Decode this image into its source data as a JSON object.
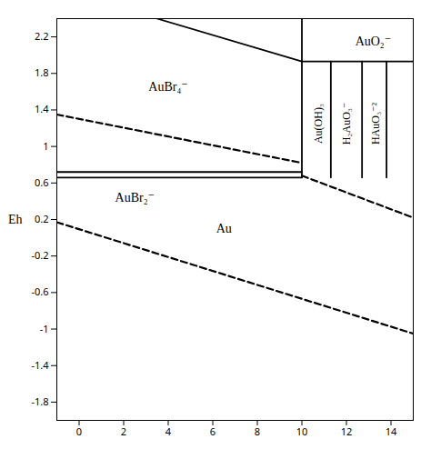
{
  "chart_data": {
    "type": "line",
    "ylabel": "Eh",
    "xlim": [
      -1,
      15
    ],
    "ylim": [
      -2.0,
      2.4
    ],
    "xticks": [
      0,
      2,
      4,
      6,
      8,
      10,
      12,
      14
    ],
    "yticks": [
      -1.8,
      -1.4,
      -1.0,
      -0.6,
      -0.2,
      0.2,
      0.6,
      1.0,
      1.4,
      1.8,
      2.2
    ],
    "grid": false,
    "color": "#000000",
    "series": [
      {
        "x": [
          -1,
          10.0
        ],
        "values": [
          0.72,
          0.72
        ],
        "line_style": "solid"
      },
      {
        "x": [
          -1,
          10.0
        ],
        "values": [
          0.66,
          0.66
        ],
        "line_style": "solid"
      },
      {
        "x": [
          10.0,
          10.0
        ],
        "values": [
          0.66,
          2.4
        ],
        "line_style": "solid"
      },
      {
        "x": [
          10.0,
          11.3
        ],
        "values": [
          1.93,
          1.93
        ],
        "line_style": "solid"
      },
      {
        "x": [
          11.3,
          11.3
        ],
        "values": [
          0.66,
          1.93
        ],
        "line_style": "solid"
      },
      {
        "x": [
          11.3,
          15.0
        ],
        "values": [
          1.93,
          1.93
        ],
        "line_style": "solid"
      },
      {
        "x": [
          12.7,
          12.7
        ],
        "values": [
          0.66,
          1.93
        ],
        "line_style": "solid"
      },
      {
        "x": [
          13.8,
          13.8
        ],
        "values": [
          0.66,
          1.93
        ],
        "line_style": "solid"
      },
      {
        "x": [
          3.5,
          10.0
        ],
        "values": [
          2.4,
          1.93
        ],
        "line_style": "solid"
      },
      {
        "x": [
          -1,
          10.0
        ],
        "values": [
          1.35,
          0.82
        ],
        "line_style": "dashed"
      },
      {
        "x": [
          10.0,
          15.0
        ],
        "values": [
          0.68,
          0.22
        ],
        "line_style": "dashed"
      },
      {
        "x": [
          -1,
          15.0
        ],
        "values": [
          0.17,
          -1.05
        ],
        "line_style": "dashed"
      }
    ],
    "annotations": [
      {
        "text": "AuBr₄⁻",
        "x": 4.0,
        "y": 1.65
      },
      {
        "text": "AuBr₂⁻",
        "x": 2.5,
        "y": 0.44
      },
      {
        "text": "Au",
        "x": 6.5,
        "y": 0.1
      },
      {
        "text": "Au(OH)₃",
        "x": 10.75,
        "y": 1.25,
        "orientation": "vertical"
      },
      {
        "text": "H₂AuO₃⁻",
        "x": 12.0,
        "y": 1.25,
        "orientation": "vertical"
      },
      {
        "text": "HAuO₃⁻²",
        "x": 13.3,
        "y": 1.25,
        "orientation": "vertical"
      },
      {
        "text": "AuO₂⁻",
        "x": 13.2,
        "y": 2.15
      }
    ]
  }
}
